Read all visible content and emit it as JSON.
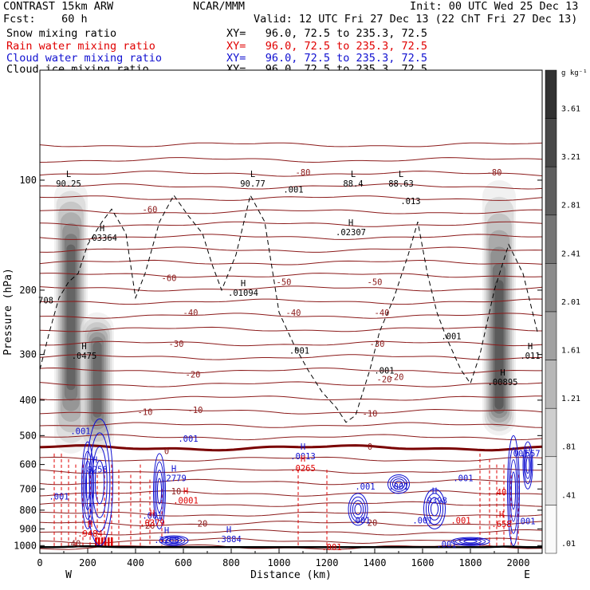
{
  "header": {
    "model": "CONTRAST 15km ARW",
    "center": "NCAR/MMM",
    "init": "Init: 00 UTC Wed 25 Dec 13",
    "fcst": "Fcst:    60 h",
    "valid": "Valid: 12 UTC Fri 27 Dec 13 (22 ChT Fri 27 Dec 13)"
  },
  "legend": [
    {
      "name": "Snow mixing ratio",
      "xy": "XY=   96.0, 72.5 to 235.3, 72.5",
      "color": "#000000"
    },
    {
      "name": "Rain water mixing ratio",
      "xy": "XY=   96.0, 72.5 to 235.3, 72.5",
      "color": "#e00000"
    },
    {
      "name": "Cloud water mixing ratio",
      "xy": "XY=   96.0, 72.5 to 235.3, 72.5",
      "color": "#1010d0"
    },
    {
      "name": "Cloud ice mixing ratio",
      "xy": "XY=   96.0, 72.5 to 235.3, 72.5",
      "color": "#000000"
    }
  ],
  "chart_data": {
    "type": "heatmap",
    "xlabel": "Distance (km)",
    "ylabel": "Pressure (hPa)",
    "xlim": [
      0,
      2100
    ],
    "ylim": [
      1050,
      50
    ],
    "y_scale": "log",
    "xticks": [
      "0",
      "200",
      "400",
      "600",
      "800",
      "1000",
      "1200",
      "1400",
      "1600",
      "1800",
      "2000"
    ],
    "yticks": [
      "100",
      "200",
      "300",
      "400",
      "500",
      "600",
      "700",
      "800",
      "900",
      "1000"
    ],
    "end_labels": {
      "left": "W",
      "right": "E"
    },
    "colorbar": {
      "unit": "g kg⁻¹",
      "labels": [
        "3.61",
        "3.21",
        "2.81",
        "2.41",
        "2.01",
        "1.61",
        "1.21",
        ".81",
        ".41",
        ".01"
      ]
    },
    "shading_columns": [
      {
        "x": 130,
        "pmin": 100,
        "pmax": 560,
        "peak": 220,
        "strength": 0.9
      },
      {
        "x": 240,
        "pmin": 230,
        "pmax": 560,
        "peak": 330,
        "strength": 0.85
      },
      {
        "x": 1920,
        "pmin": 100,
        "pmax": 500,
        "peak": 340,
        "strength": 0.95
      }
    ],
    "temperature_labels": [
      {
        "text": "-80",
        "x": 1100,
        "p": 95
      },
      {
        "text": "-80",
        "x": 1900,
        "p": 95
      },
      {
        "text": "-60",
        "x": 460,
        "p": 120
      },
      {
        "text": "-60",
        "x": 540,
        "p": 185
      },
      {
        "text": "-50",
        "x": 1020,
        "p": 190
      },
      {
        "text": "-50",
        "x": 1400,
        "p": 190
      },
      {
        "text": "-40",
        "x": 630,
        "p": 230
      },
      {
        "text": "-40",
        "x": 1060,
        "p": 230
      },
      {
        "text": "-40",
        "x": 1430,
        "p": 230
      },
      {
        "text": "-30",
        "x": 570,
        "p": 280
      },
      {
        "text": "-30",
        "x": 1410,
        "p": 280
      },
      {
        "text": "-20",
        "x": 640,
        "p": 340
      },
      {
        "text": "-20",
        "x": 1440,
        "p": 350
      },
      {
        "text": "-20",
        "x": 1490,
        "p": 345
      },
      {
        "text": "-10",
        "x": 440,
        "p": 430
      },
      {
        "text": "-10",
        "x": 650,
        "p": 425
      },
      {
        "text": "-10",
        "x": 1380,
        "p": 435
      },
      {
        "text": "0",
        "x": 530,
        "p": 550
      },
      {
        "text": "0",
        "x": 1380,
        "p": 535
      },
      {
        "text": "10",
        "x": 570,
        "p": 710
      },
      {
        "text": "-20",
        "x": 450,
        "p": 880
      },
      {
        "text": "20",
        "x": 680,
        "p": 870
      },
      {
        "text": "20",
        "x": 1390,
        "p": 865
      },
      {
        "text": "40",
        "x": 150,
        "p": 985
      }
    ],
    "extrema_labels": [
      {
        "mark": "L",
        "value": "90.25",
        "x": 120,
        "p": 103,
        "color": "#000000"
      },
      {
        "mark": "L",
        "value": "90.77",
        "x": 890,
        "p": 103,
        "color": "#000000"
      },
      {
        "mark": "",
        "value": ".001",
        "x": 1060,
        "p": 107,
        "color": "#000000"
      },
      {
        "mark": "L",
        "value": "88.4",
        "x": 1310,
        "p": 103,
        "color": "#000000"
      },
      {
        "mark": "L",
        "value": "88.63",
        "x": 1510,
        "p": 103,
        "color": "#000000"
      },
      {
        "mark": "",
        "value": ".013",
        "x": 1550,
        "p": 115,
        "color": "#000000"
      },
      {
        "mark": "H",
        "value": ".03364",
        "x": 260,
        "p": 145,
        "color": "#000000"
      },
      {
        "mark": "H",
        "value": ".02307",
        "x": 1300,
        "p": 140,
        "color": "#000000"
      },
      {
        "mark": "H",
        "value": ".01094",
        "x": 850,
        "p": 205,
        "color": "#000000"
      },
      {
        "mark": "",
        "value": "708",
        "x": 25,
        "p": 215,
        "color": "#000000"
      },
      {
        "mark": "H",
        "value": ".0475",
        "x": 185,
        "p": 305,
        "color": "#000000"
      },
      {
        "mark": "",
        "value": ".001",
        "x": 1085,
        "p": 295,
        "color": "#000000"
      },
      {
        "mark": "",
        "value": ".001",
        "x": 1440,
        "p": 335,
        "color": "#000000"
      },
      {
        "mark": "",
        "value": ".001",
        "x": 1720,
        "p": 270,
        "color": "#000000"
      },
      {
        "mark": "H",
        "value": ".00895",
        "x": 1935,
        "p": 360,
        "color": "#000000"
      },
      {
        "mark": "H",
        "value": ".011",
        "x": 2050,
        "p": 305,
        "color": "#000000"
      },
      {
        "mark": "",
        "value": ".001",
        "x": 170,
        "p": 490,
        "color": "#1010d0"
      },
      {
        "mark": "",
        "value": ".001",
        "x": 620,
        "p": 515,
        "color": "#1010d0"
      },
      {
        "mark": "H",
        "value": ".0013",
        "x": 1100,
        "p": 575,
        "color": "#1010d0"
      },
      {
        "mark": "H",
        "value": ".9258",
        "x": 230,
        "p": 625,
        "color": "#1010d0"
      },
      {
        "mark": "H",
        "value": ".2779",
        "x": 560,
        "p": 660,
        "color": "#1010d0"
      },
      {
        "mark": "",
        "value": ".001",
        "x": 1770,
        "p": 660,
        "color": "#1010d0"
      },
      {
        "mark": "",
        "value": ".001",
        "x": 1360,
        "p": 695,
        "color": "#1010d0"
      },
      {
        "mark": "",
        "value": ".001",
        "x": 1500,
        "p": 695,
        "color": "#1010d0"
      },
      {
        "mark": "H",
        "value": ".9398",
        "x": 1650,
        "p": 760,
        "color": "#1010d0"
      },
      {
        "mark": "",
        "value": ".001",
        "x": 1340,
        "p": 860,
        "color": "#1010d0"
      },
      {
        "mark": "",
        "value": ".001",
        "x": 1600,
        "p": 860,
        "color": "#1010d0"
      },
      {
        "mark": "",
        "value": ".001",
        "x": 2030,
        "p": 865,
        "color": "#1010d0"
      },
      {
        "mark": "",
        "value": ".001",
        "x": 2000,
        "p": 565,
        "color": "#1010d0"
      },
      {
        "mark": "",
        "value": ".001",
        "x": 80,
        "p": 740,
        "color": "#1010d0"
      },
      {
        "mark": "",
        "value": ".001",
        "x": 470,
        "p": 835,
        "color": "#1010d0"
      },
      {
        "mark": "",
        "value": ".557",
        "x": 2050,
        "p": 565,
        "color": "#1010d0"
      },
      {
        "mark": "H",
        "value": ".3268",
        "x": 530,
        "p": 975,
        "color": "#1010d0"
      },
      {
        "mark": "H",
        "value": ".3884",
        "x": 790,
        "p": 970,
        "color": "#1010d0"
      },
      {
        "mark": "",
        "value": ".001",
        "x": 1700,
        "p": 1000,
        "color": "#1010d0"
      },
      {
        "mark": "H",
        "value": ".0265",
        "x": 1100,
        "p": 620,
        "color": "#e00000"
      },
      {
        "mark": "H",
        "value": ".0001",
        "x": 610,
        "p": 760,
        "color": "#e00000"
      },
      {
        "mark": "H",
        "value": ".0379",
        "x": 470,
        "p": 875,
        "color": "#e00000"
      },
      {
        "mark": "H",
        "value": ".9484",
        "x": 210,
        "p": 935,
        "color": "#e00000"
      },
      {
        "mark": "",
        "value": ".001",
        "x": 1760,
        "p": 860,
        "color": "#e00000"
      },
      {
        "mark": "H",
        "value": ".658",
        "x": 1930,
        "p": 880,
        "color": "#e00000"
      },
      {
        "mark": "",
        "value": ".001",
        "x": 1220,
        "p": 1020,
        "color": "#e00000"
      },
      {
        "mark": "",
        "value": "40",
        "x": 1930,
        "p": 720,
        "color": "#e00000"
      }
    ]
  }
}
